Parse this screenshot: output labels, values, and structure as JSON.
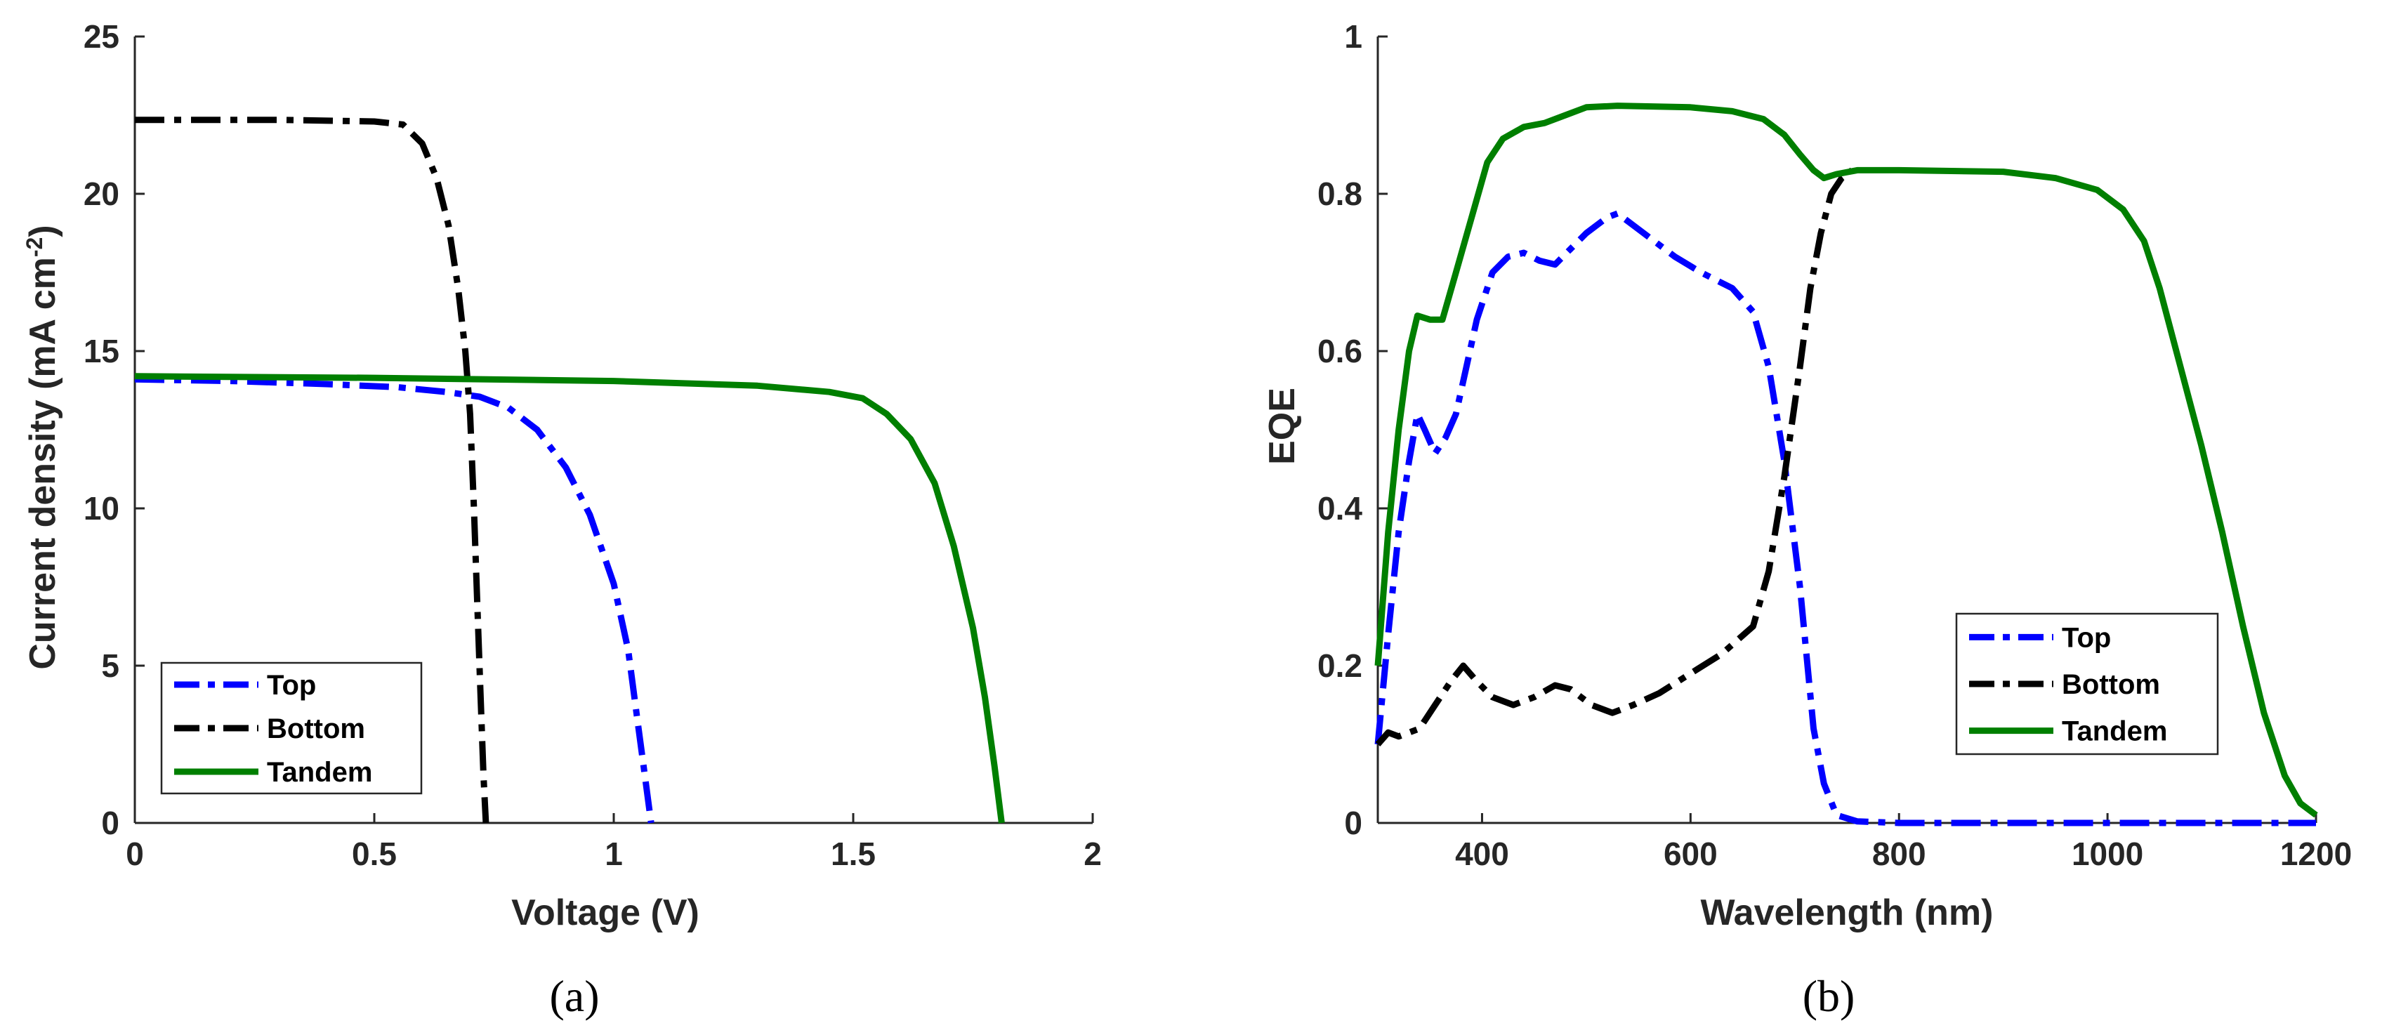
{
  "chart_data": [
    {
      "type": "line",
      "panel_label": "(a)",
      "xlabel": "Voltage (V)",
      "ylabel": "Current density (mA cm",
      "ylabel_sup": "-2",
      "ylabel_close": ")",
      "xlim": [
        0,
        2
      ],
      "ylim": [
        0,
        25
      ],
      "xticks": [
        0,
        0.5,
        1,
        1.5,
        2
      ],
      "xtick_labels": [
        "0",
        "0.5",
        "1",
        "1.5",
        "2"
      ],
      "yticks": [
        0,
        5,
        10,
        15,
        20,
        25
      ],
      "ytick_labels": [
        "0",
        "5",
        "10",
        "15",
        "20",
        "25"
      ],
      "legend_position": "bottom-left",
      "series": [
        {
          "name": "Top",
          "color": "#0000ff",
          "dash": "dashdot",
          "points": [
            [
              0,
              14.1
            ],
            [
              0.2,
              14.05
            ],
            [
              0.4,
              13.95
            ],
            [
              0.55,
              13.85
            ],
            [
              0.65,
              13.7
            ],
            [
              0.72,
              13.55
            ],
            [
              0.78,
              13.2
            ],
            [
              0.84,
              12.5
            ],
            [
              0.9,
              11.3
            ],
            [
              0.95,
              9.8
            ],
            [
              1.0,
              7.6
            ],
            [
              1.03,
              5.5
            ],
            [
              1.05,
              3.2
            ],
            [
              1.065,
              1.5
            ],
            [
              1.078,
              0
            ]
          ]
        },
        {
          "name": "Bottom",
          "color": "#000000",
          "dash": "dashdot",
          "points": [
            [
              0,
              22.35
            ],
            [
              0.3,
              22.35
            ],
            [
              0.5,
              22.3
            ],
            [
              0.56,
              22.2
            ],
            [
              0.6,
              21.6
            ],
            [
              0.63,
              20.5
            ],
            [
              0.655,
              19.0
            ],
            [
              0.675,
              17.0
            ],
            [
              0.69,
              15.0
            ],
            [
              0.7,
              13.0
            ],
            [
              0.708,
              10.0
            ],
            [
              0.715,
              7.0
            ],
            [
              0.722,
              4.0
            ],
            [
              0.728,
              1.5
            ],
            [
              0.733,
              0
            ]
          ]
        },
        {
          "name": "Tandem",
          "color": "#007f00",
          "dash": "solid",
          "points": [
            [
              0,
              14.2
            ],
            [
              0.5,
              14.15
            ],
            [
              1.0,
              14.05
            ],
            [
              1.3,
              13.9
            ],
            [
              1.45,
              13.7
            ],
            [
              1.52,
              13.5
            ],
            [
              1.57,
              13.0
            ],
            [
              1.62,
              12.2
            ],
            [
              1.67,
              10.8
            ],
            [
              1.71,
              8.8
            ],
            [
              1.75,
              6.2
            ],
            [
              1.775,
              4.0
            ],
            [
              1.795,
              1.8
            ],
            [
              1.81,
              0
            ]
          ]
        }
      ]
    },
    {
      "type": "line",
      "panel_label": "(b)",
      "xlabel": "Wavelength (nm)",
      "ylabel": "EQE",
      "xlim": [
        300,
        1200
      ],
      "ylim": [
        0,
        1
      ],
      "xticks": [
        400,
        600,
        800,
        1000,
        1200
      ],
      "xtick_labels": [
        "400",
        "600",
        "800",
        "1000",
        "1200"
      ],
      "yticks": [
        0,
        0.2,
        0.4,
        0.6,
        0.8,
        1
      ],
      "ytick_labels": [
        "0",
        "0.2",
        "0.4",
        "0.6",
        "0.8",
        "1"
      ],
      "legend_position": "right",
      "series": [
        {
          "name": "Top",
          "color": "#0000ff",
          "dash": "dashdot",
          "points": [
            [
              300,
              0.1
            ],
            [
              310,
              0.24
            ],
            [
              320,
              0.37
            ],
            [
              330,
              0.46
            ],
            [
              338,
              0.52
            ],
            [
              345,
              0.5
            ],
            [
              355,
              0.47
            ],
            [
              365,
              0.49
            ],
            [
              375,
              0.52
            ],
            [
              385,
              0.58
            ],
            [
              395,
              0.64
            ],
            [
              410,
              0.7
            ],
            [
              425,
              0.72
            ],
            [
              440,
              0.725
            ],
            [
              455,
              0.715
            ],
            [
              470,
              0.71
            ],
            [
              485,
              0.73
            ],
            [
              500,
              0.75
            ],
            [
              520,
              0.77
            ],
            [
              530,
              0.775
            ],
            [
              545,
              0.76
            ],
            [
              565,
              0.74
            ],
            [
              585,
              0.72
            ],
            [
              610,
              0.7
            ],
            [
              640,
              0.68
            ],
            [
              660,
              0.65
            ],
            [
              675,
              0.58
            ],
            [
              690,
              0.46
            ],
            [
              705,
              0.3
            ],
            [
              718,
              0.12
            ],
            [
              728,
              0.05
            ],
            [
              740,
              0.01
            ],
            [
              760,
              0.002
            ],
            [
              800,
              0
            ],
            [
              900,
              0
            ],
            [
              1000,
              0
            ],
            [
              1100,
              0
            ],
            [
              1200,
              0
            ]
          ]
        },
        {
          "name": "Bottom",
          "color": "#000000",
          "dash": "dashdot",
          "points": [
            [
              300,
              0.1
            ],
            [
              310,
              0.115
            ],
            [
              320,
              0.11
            ],
            [
              340,
              0.12
            ],
            [
              355,
              0.15
            ],
            [
              370,
              0.18
            ],
            [
              382,
              0.2
            ],
            [
              395,
              0.18
            ],
            [
              410,
              0.16
            ],
            [
              430,
              0.15
            ],
            [
              450,
              0.16
            ],
            [
              470,
              0.175
            ],
            [
              485,
              0.17
            ],
            [
              505,
              0.15
            ],
            [
              525,
              0.14
            ],
            [
              545,
              0.15
            ],
            [
              570,
              0.165
            ],
            [
              600,
              0.19
            ],
            [
              630,
              0.215
            ],
            [
              660,
              0.25
            ],
            [
              675,
              0.32
            ],
            [
              690,
              0.44
            ],
            [
              705,
              0.58
            ],
            [
              715,
              0.68
            ],
            [
              725,
              0.75
            ],
            [
              735,
              0.8
            ],
            [
              745,
              0.82
            ],
            [
              755,
              0.83
            ]
          ]
        },
        {
          "name": "Tandem",
          "color": "#007f00",
          "dash": "solid",
          "points": [
            [
              300,
              0.2
            ],
            [
              310,
              0.37
            ],
            [
              320,
              0.5
            ],
            [
              330,
              0.6
            ],
            [
              338,
              0.645
            ],
            [
              350,
              0.64
            ],
            [
              362,
              0.64
            ],
            [
              375,
              0.7
            ],
            [
              390,
              0.77
            ],
            [
              405,
              0.84
            ],
            [
              420,
              0.87
            ],
            [
              440,
              0.885
            ],
            [
              460,
              0.89
            ],
            [
              480,
              0.9
            ],
            [
              500,
              0.91
            ],
            [
              530,
              0.912
            ],
            [
              600,
              0.91
            ],
            [
              640,
              0.905
            ],
            [
              670,
              0.895
            ],
            [
              690,
              0.875
            ],
            [
              705,
              0.85
            ],
            [
              718,
              0.83
            ],
            [
              728,
              0.82
            ],
            [
              740,
              0.825
            ],
            [
              760,
              0.83
            ],
            [
              800,
              0.83
            ],
            [
              900,
              0.828
            ],
            [
              950,
              0.82
            ],
            [
              990,
              0.805
            ],
            [
              1015,
              0.78
            ],
            [
              1035,
              0.74
            ],
            [
              1050,
              0.68
            ],
            [
              1070,
              0.58
            ],
            [
              1090,
              0.48
            ],
            [
              1110,
              0.37
            ],
            [
              1130,
              0.25
            ],
            [
              1150,
              0.14
            ],
            [
              1170,
              0.06
            ],
            [
              1185,
              0.025
            ],
            [
              1200,
              0.01
            ]
          ]
        }
      ]
    }
  ]
}
